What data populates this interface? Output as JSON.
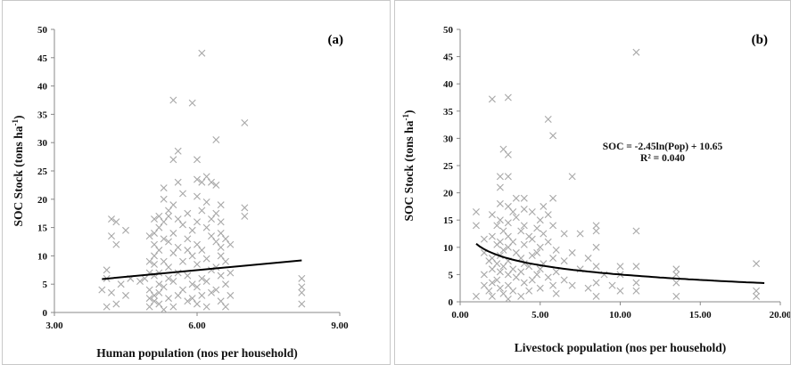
{
  "colors": {
    "marker": "#a8a8a8",
    "trend": "#000000",
    "axis": "#888888"
  },
  "chart_data": [
    {
      "type": "scatter",
      "panel_label": "(a)",
      "xlabel": "Human population  (nos per household)",
      "ylabel": "SOC Stock (tons ha-1)",
      "xlim": [
        3,
        9
      ],
      "ylim": [
        0,
        50
      ],
      "xticks": [
        3,
        6,
        9
      ],
      "xtick_labels": [
        "3.00",
        "6.00",
        "9.00"
      ],
      "yticks": [
        0,
        5,
        10,
        15,
        20,
        25,
        30,
        35,
        40,
        45,
        50
      ],
      "ytick_labels": [
        "0",
        "5",
        "10",
        "15",
        "20",
        "25",
        "30",
        "35",
        "40",
        "45",
        "50"
      ],
      "marker": "x",
      "trendline": {
        "type": "linear",
        "x": [
          4.0,
          8.2
        ],
        "y": [
          5.9,
          9.2
        ]
      },
      "series": [
        {
          "points": [
            [
              4.0,
              4.0
            ],
            [
              4.1,
              6.0
            ],
            [
              4.1,
              7.5
            ],
            [
              4.2,
              16.5
            ],
            [
              4.2,
              13.5
            ],
            [
              4.3,
              16.0
            ],
            [
              4.3,
              12.0
            ],
            [
              4.4,
              5.0
            ],
            [
              4.5,
              14.5
            ],
            [
              4.2,
              3.5
            ],
            [
              4.1,
              1.0
            ],
            [
              4.3,
              1.5
            ],
            [
              4.5,
              3.0
            ],
            [
              4.6,
              6.0
            ],
            [
              4.8,
              5.5
            ],
            [
              4.9,
              6.0
            ],
            [
              5.0,
              1.0
            ],
            [
              5.0,
              7.0
            ],
            [
              5.0,
              9.0
            ],
            [
              5.0,
              4.0
            ],
            [
              5.1,
              16.5
            ],
            [
              5.1,
              14.0
            ],
            [
              5.1,
              12.0
            ],
            [
              5.1,
              10.0
            ],
            [
              5.1,
              8.5
            ],
            [
              5.1,
              6.5
            ],
            [
              5.1,
              3.0
            ],
            [
              5.1,
              2.0
            ],
            [
              5.2,
              17.0
            ],
            [
              5.2,
              15.0
            ],
            [
              5.2,
              11.0
            ],
            [
              5.2,
              7.0
            ],
            [
              5.2,
              5.0
            ],
            [
              5.2,
              3.5
            ],
            [
              5.2,
              1.5
            ],
            [
              5.3,
              22.0
            ],
            [
              5.3,
              20.0
            ],
            [
              5.3,
              13.0
            ],
            [
              5.3,
              9.0
            ],
            [
              5.3,
              4.5
            ],
            [
              5.3,
              0.5
            ],
            [
              5.4,
              18.0
            ],
            [
              5.4,
              17.0
            ],
            [
              5.4,
              12.5
            ],
            [
              5.4,
              8.0
            ],
            [
              5.4,
              6.0
            ],
            [
              5.4,
              2.5
            ],
            [
              5.5,
              37.5
            ],
            [
              5.5,
              27.0
            ],
            [
              5.5,
              19.0
            ],
            [
              5.5,
              14.0
            ],
            [
              5.5,
              10.5
            ],
            [
              5.5,
              5.5
            ],
            [
              5.5,
              1.0
            ],
            [
              5.6,
              28.5
            ],
            [
              5.6,
              16.5
            ],
            [
              5.6,
              11.5
            ],
            [
              5.6,
              7.0
            ],
            [
              5.6,
              3.0
            ],
            [
              5.7,
              21.0
            ],
            [
              5.7,
              15.5
            ],
            [
              5.7,
              9.0
            ],
            [
              5.7,
              4.0
            ],
            [
              5.8,
              17.5
            ],
            [
              5.8,
              13.0
            ],
            [
              5.8,
              6.5
            ],
            [
              5.8,
              2.0
            ],
            [
              5.9,
              37.0
            ],
            [
              5.9,
              14.5
            ],
            [
              5.9,
              10.0
            ],
            [
              5.9,
              5.0
            ],
            [
              6.0,
              27.0
            ],
            [
              6.0,
              23.5
            ],
            [
              6.0,
              20.5
            ],
            [
              6.0,
              16.0
            ],
            [
              6.0,
              12.0
            ],
            [
              6.0,
              8.5
            ],
            [
              6.0,
              4.5
            ],
            [
              6.0,
              1.5
            ],
            [
              6.1,
              45.8
            ],
            [
              6.1,
              23.0
            ],
            [
              6.1,
              18.0
            ],
            [
              6.1,
              11.0
            ],
            [
              6.1,
              6.0
            ],
            [
              6.1,
              3.0
            ],
            [
              6.2,
              24.0
            ],
            [
              6.2,
              19.5
            ],
            [
              6.2,
              15.0
            ],
            [
              6.2,
              9.5
            ],
            [
              6.2,
              5.5
            ],
            [
              6.2,
              1.0
            ],
            [
              6.3,
              23.0
            ],
            [
              6.3,
              13.5
            ],
            [
              6.3,
              7.5
            ],
            [
              6.3,
              3.5
            ],
            [
              6.4,
              30.5
            ],
            [
              6.4,
              22.5
            ],
            [
              6.4,
              17.5
            ],
            [
              6.4,
              12.5
            ],
            [
              6.4,
              8.0
            ],
            [
              6.4,
              4.0
            ],
            [
              6.5,
              19.0
            ],
            [
              6.5,
              16.0
            ],
            [
              6.5,
              14.0
            ],
            [
              6.5,
              10.0
            ],
            [
              6.5,
              6.5
            ],
            [
              6.5,
              2.0
            ],
            [
              6.6,
              13.0
            ],
            [
              6.6,
              9.0
            ],
            [
              6.6,
              5.0
            ],
            [
              6.7,
              12.0
            ],
            [
              6.7,
              7.0
            ],
            [
              6.7,
              3.0
            ],
            [
              7.0,
              33.5
            ],
            [
              7.0,
              18.5
            ],
            [
              7.0,
              17.0
            ],
            [
              5.0,
              13.5
            ],
            [
              5.6,
              23.0
            ],
            [
              6.3,
              16.5
            ],
            [
              5.3,
              16.0
            ],
            [
              5.8,
              11.0
            ],
            [
              6.5,
              11.5
            ],
            [
              5.0,
              2.5
            ],
            [
              5.9,
              2.5
            ],
            [
              6.6,
              1.0
            ],
            [
              8.2,
              6.0
            ],
            [
              8.2,
              4.5
            ],
            [
              8.2,
              3.5
            ],
            [
              8.2,
              1.5
            ]
          ]
        }
      ]
    },
    {
      "type": "scatter",
      "panel_label": "(b)",
      "xlabel": "Livestock population  (nos per household)",
      "ylabel": "SOC Stock (tons ha-1)",
      "xlim": [
        0,
        20
      ],
      "ylim": [
        0,
        50
      ],
      "xticks": [
        0,
        5,
        10,
        15,
        20
      ],
      "xtick_labels": [
        "0.00",
        "5.00",
        "10.00",
        "15.00",
        "20.00"
      ],
      "yticks": [
        0,
        5,
        10,
        15,
        20,
        25,
        30,
        35,
        40,
        45,
        50
      ],
      "ytick_labels": [
        "0",
        "5",
        "10",
        "15",
        "20",
        "25",
        "30",
        "35",
        "40",
        "45",
        "50"
      ],
      "marker": "x",
      "annotation": [
        "SOC = -2.45ln(Pop) + 10.65",
        "R² = 0.040"
      ],
      "trendline": {
        "type": "log",
        "a": -2.45,
        "b": 10.65,
        "xrange": [
          1,
          19
        ]
      },
      "series": [
        {
          "points": [
            [
              1.0,
              16.5
            ],
            [
              1.0,
              14.0
            ],
            [
              1.0,
              1.0
            ],
            [
              1.5,
              11.5
            ],
            [
              1.5,
              9.0
            ],
            [
              1.5,
              5.0
            ],
            [
              1.5,
              3.0
            ],
            [
              1.8,
              7.5
            ],
            [
              1.8,
              2.0
            ],
            [
              2.0,
              37.2
            ],
            [
              2.0,
              16.0
            ],
            [
              2.0,
              12.0
            ],
            [
              2.0,
              8.0
            ],
            [
              2.0,
              6.0
            ],
            [
              2.0,
              3.5
            ],
            [
              2.0,
              1.0
            ],
            [
              2.3,
              14.0
            ],
            [
              2.3,
              10.5
            ],
            [
              2.3,
              7.0
            ],
            [
              2.3,
              4.0
            ],
            [
              2.5,
              23.0
            ],
            [
              2.5,
              21.0
            ],
            [
              2.5,
              18.0
            ],
            [
              2.5,
              15.0
            ],
            [
              2.5,
              11.0
            ],
            [
              2.5,
              8.5
            ],
            [
              2.5,
              5.5
            ],
            [
              2.5,
              2.5
            ],
            [
              2.7,
              28.0
            ],
            [
              2.7,
              13.0
            ],
            [
              2.7,
              9.5
            ],
            [
              2.7,
              6.5
            ],
            [
              2.7,
              1.5
            ],
            [
              3.0,
              37.5
            ],
            [
              3.0,
              27.0
            ],
            [
              3.0,
              23.0
            ],
            [
              3.0,
              17.5
            ],
            [
              3.0,
              14.5
            ],
            [
              3.0,
              12.0
            ],
            [
              3.0,
              10.0
            ],
            [
              3.0,
              7.5
            ],
            [
              3.0,
              5.0
            ],
            [
              3.0,
              3.0
            ],
            [
              3.0,
              0.5
            ],
            [
              3.3,
              16.5
            ],
            [
              3.3,
              11.0
            ],
            [
              3.3,
              6.0
            ],
            [
              3.3,
              2.0
            ],
            [
              3.5,
              19.0
            ],
            [
              3.5,
              15.5
            ],
            [
              3.5,
              9.0
            ],
            [
              3.5,
              4.5
            ],
            [
              3.8,
              13.0
            ],
            [
              3.8,
              8.0
            ],
            [
              3.8,
              5.5
            ],
            [
              3.8,
              1.0
            ],
            [
              4.0,
              19.0
            ],
            [
              4.0,
              17.0
            ],
            [
              4.0,
              14.0
            ],
            [
              4.0,
              10.5
            ],
            [
              4.0,
              7.0
            ],
            [
              4.0,
              3.5
            ],
            [
              4.3,
              12.0
            ],
            [
              4.3,
              6.5
            ],
            [
              4.3,
              2.0
            ],
            [
              4.5,
              16.5
            ],
            [
              4.5,
              11.5
            ],
            [
              4.5,
              8.5
            ],
            [
              4.5,
              4.0
            ],
            [
              4.8,
              13.5
            ],
            [
              4.8,
              9.0
            ],
            [
              4.8,
              5.0
            ],
            [
              5.0,
              15.0
            ],
            [
              5.0,
              10.0
            ],
            [
              5.0,
              6.0
            ],
            [
              5.0,
              2.5
            ],
            [
              5.2,
              17.5
            ],
            [
              5.2,
              12.5
            ],
            [
              5.2,
              7.0
            ],
            [
              5.5,
              33.5
            ],
            [
              5.5,
              16.0
            ],
            [
              5.5,
              11.0
            ],
            [
              5.5,
              4.5
            ],
            [
              5.8,
              30.5
            ],
            [
              5.8,
              19.0
            ],
            [
              5.8,
              14.0
            ],
            [
              5.8,
              8.0
            ],
            [
              5.8,
              3.0
            ],
            [
              6.0,
              9.5
            ],
            [
              6.0,
              5.5
            ],
            [
              6.0,
              1.5
            ],
            [
              6.5,
              12.5
            ],
            [
              6.5,
              7.5
            ],
            [
              6.5,
              4.0
            ],
            [
              7.0,
              23.0
            ],
            [
              7.0,
              9.0
            ],
            [
              7.0,
              3.0
            ],
            [
              7.5,
              12.5
            ],
            [
              7.5,
              6.0
            ],
            [
              8.0,
              8.0
            ],
            [
              8.0,
              2.5
            ],
            [
              8.5,
              14.0
            ],
            [
              8.5,
              13.0
            ],
            [
              8.5,
              10.0
            ],
            [
              8.5,
              6.5
            ],
            [
              8.5,
              3.5
            ],
            [
              8.5,
              1.0
            ],
            [
              9.0,
              5.0
            ],
            [
              9.5,
              3.0
            ],
            [
              10.0,
              6.5
            ],
            [
              10.0,
              5.0
            ],
            [
              10.0,
              2.0
            ],
            [
              11.0,
              45.8
            ],
            [
              11.0,
              13.0
            ],
            [
              11.0,
              6.5
            ],
            [
              11.0,
              3.5
            ],
            [
              11.0,
              2.0
            ],
            [
              13.5,
              6.0
            ],
            [
              13.5,
              5.0
            ],
            [
              13.5,
              3.5
            ],
            [
              13.5,
              1.0
            ],
            [
              18.5,
              7.0
            ],
            [
              18.5,
              2.0
            ],
            [
              18.5,
              1.0
            ]
          ]
        }
      ]
    }
  ]
}
